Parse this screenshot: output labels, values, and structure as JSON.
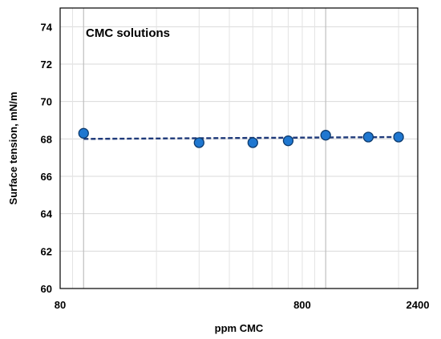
{
  "chart_data": {
    "type": "scatter",
    "annotation": "CMC solutions",
    "xlabel": "ppm CMC",
    "ylabel": "Surface tension, mN/m",
    "x_scale": "log",
    "xlim": [
      80,
      2400
    ],
    "ylim": [
      60,
      75
    ],
    "x_tick_labels": [
      "80",
      "800",
      "2400"
    ],
    "y_tick_labels": [
      "60",
      "62",
      "64",
      "66",
      "68",
      "70",
      "72",
      "74"
    ],
    "grid": true,
    "legend": "none",
    "series": [
      {
        "type": "scatter",
        "x": [
          100,
          300,
          500,
          700,
          1000,
          1500,
          2000
        ],
        "y": [
          68.3,
          67.8,
          67.8,
          67.9,
          68.2,
          68.1,
          68.1
        ],
        "color": "#1f77d0",
        "edge_color": "#0d3b6e"
      }
    ],
    "trendline": {
      "style": "dashed",
      "color": "#1f3a7a",
      "x": [
        100,
        2000
      ],
      "y": [
        68.0,
        68.1
      ]
    }
  }
}
